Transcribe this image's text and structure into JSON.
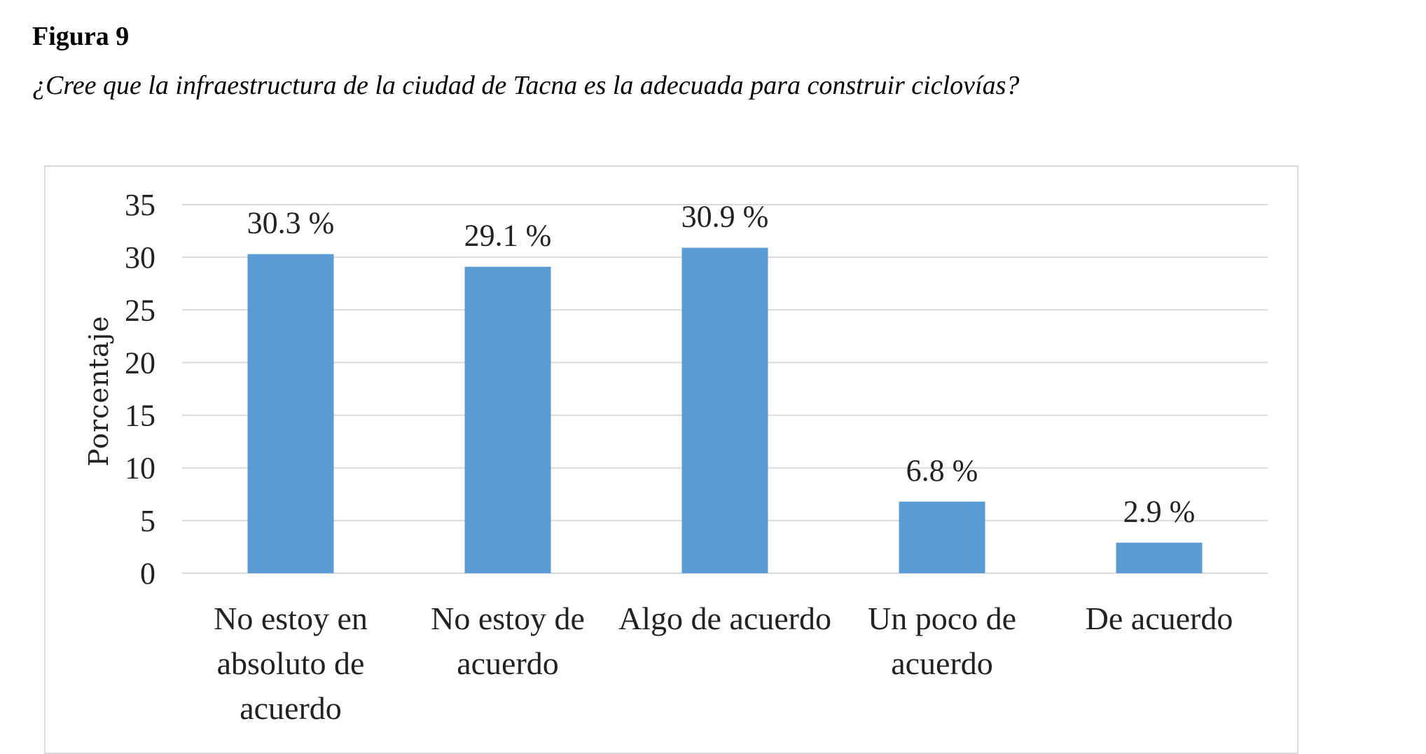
{
  "figure": {
    "label": "Figura 9",
    "title": "¿Cree que la infraestructura de la ciudad de Tacna es la adecuada para construir ciclovías?"
  },
  "chart_data": {
    "type": "bar",
    "title": "",
    "xlabel": "",
    "ylabel": "Porcentaje",
    "ylim": [
      0,
      35
    ],
    "yticks": [
      0,
      5,
      10,
      15,
      20,
      25,
      30,
      35
    ],
    "grid": true,
    "categories": [
      [
        "No estoy en",
        "absoluto de",
        "acuerdo"
      ],
      [
        "No estoy de",
        "acuerdo"
      ],
      [
        "Algo de acuerdo"
      ],
      [
        "Un poco de",
        "acuerdo"
      ],
      [
        "De acuerdo"
      ]
    ],
    "values": [
      30.3,
      29.1,
      30.9,
      6.8,
      2.9
    ],
    "data_labels": [
      "30.3 %",
      "29.1 %",
      "30.9 %",
      "6.8 %",
      "2.9 %"
    ],
    "bar_color": "#5b9bd5",
    "grid_color": "#d9d9d9"
  }
}
